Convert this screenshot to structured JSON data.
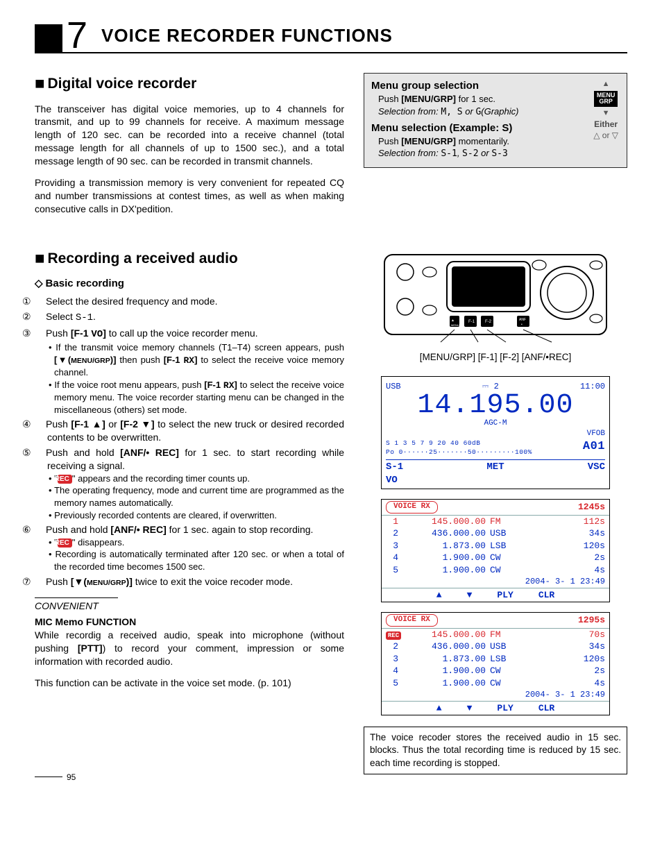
{
  "chapter": {
    "number": "7",
    "title": "VOICE RECORDER FUNCTIONS"
  },
  "section1": {
    "title": "Digital voice recorder",
    "p1": "The transceiver has digital voice memories, up to 4 channels for transmit, and up to 99 channels for receive. A maximum message length of 120 sec. can be recorded into a receive channel (total message length for all channels of up to 1500 sec.), and a total message length of 90 sec. can be recorded in transmit channels.",
    "p2": "Providing a transmission memory is very convenient for repeated CQ and number transmissions at contest times, as well as when making consecutive calls in DX'pedition."
  },
  "menubox": {
    "t1": "Menu group selection",
    "l1a": "Push ",
    "l1key": "[MENU/GRP]",
    "l1b": " for 1 sec.",
    "l2pre": "Selection from: ",
    "l2g": "M, S",
    "l2or": " or ",
    "l2g2": "G",
    "l2post": "(Graphic)",
    "t2": "Menu selection (Example: S)",
    "l3a": "Push ",
    "l3key": "[MENU/GRP]",
    "l3b": " momentarily.",
    "l4pre": "Selection from: ",
    "l4a": "S-1",
    "l4b": "S-2",
    "l4c": "S-3",
    "icon_label": "MENU\nGRP",
    "either": "Either",
    "triangles": "△ or ▽"
  },
  "section2": {
    "title": "Recording a received audio",
    "sub": "Basic recording",
    "steps": [
      {
        "n": "①",
        "t": "Select the desired frequency and mode."
      },
      {
        "n": "②",
        "t": "Select <span class='glyph-mono'>S-1</span>."
      },
      {
        "n": "③",
        "t": "Push <b>[F-1 <span class='glyph-mono'>VO</span>]</b> to call up the voice recorder menu.",
        "subs": [
          "If the transmit voice memory channels (T1–T4) screen appears, push <b>[▼(<span class='menugrp'>MENU/GRP</span>)]</b> then push <b>[F-1 <span class='glyph-mono'>RX</span>]</b> to select the receive voice memory channel.",
          "If the voice root menu appears, push <b>[F-1 <span class='glyph-mono'>RX</span>]</b> to select the receive voice memory menu. The voice recorder starting menu can be changed in the miscellaneous (others) set mode."
        ]
      },
      {
        "n": "④",
        "t": "Push <b>[F-1 ▲]</b> or <b>[F-2 ▼]</b> to select the new truck or desired recorded contents to be overwritten."
      },
      {
        "n": "⑤",
        "t": "Push and hold <b>[ANF/• REC]</b> for 1 sec. to start recording while receiving a signal.",
        "subs": [
          "\"<span class='rec-badge'>REC</span>\" appears and the recording timer counts up.",
          "The operating frequency, mode and current time are programmed as the memory names automatically.",
          "Previously recorded contents are cleared, if overwritten."
        ]
      },
      {
        "n": "⑥",
        "t": "Push and hold <b>[ANF/• REC]</b> for 1 sec. again to stop recording.",
        "subs": [
          "\"<span class='rec-badge'>REC</span>\" disappears.",
          "Recording is automatically terminated after 120 sec. or when a total of the recorded time becomes 1500 sec."
        ]
      },
      {
        "n": "⑦",
        "t": "Push <b>[▼(<span class='menugrp'>MENU/GRP</span>)]</b> twice to exit the voice recoder mode."
      }
    ]
  },
  "convenient": {
    "label": "CONVENIENT",
    "title": "MIC Memo FUNCTION",
    "p1": "While recordig a received audio, speak into microphone (without pushing <b>[PTT]</b>) to record your comment, impression or some information with recorded audio.",
    "p2": "This function can be activate in the voice set mode. (p. 101)"
  },
  "radio_labels": "[MENU/GRP]  [F-1]  [F-2]  [ANF/•REC]",
  "lcd": {
    "usb": "USB",
    "ant": "⎓ 2",
    "time": "11:00",
    "freq": "14.195.00",
    "agc": "AGC-M",
    "vfob": "VFOB",
    "srow": "S 1  3  5  7  9  20  40 60dB",
    "prow": "Po 0······25·······50·········100%",
    "big": "A01",
    "s1": "S-1",
    "vo": "VO",
    "met": "MET",
    "vsc": "VSC"
  },
  "tables": [
    {
      "total": "1245s",
      "rec": false,
      "rows": [
        {
          "n": "1",
          "f": "145.000.00",
          "m": "FM",
          "s": "112s",
          "hl": true
        },
        {
          "n": "2",
          "f": "436.000.00",
          "m": "USB",
          "s": "34s"
        },
        {
          "n": "3",
          "f": "1.873.00",
          "m": "LSB",
          "s": "120s"
        },
        {
          "n": "4",
          "f": "1.900.00",
          "m": "CW",
          "s": "2s"
        },
        {
          "n": "5",
          "f": "1.900.00",
          "m": "CW",
          "s": "4s"
        }
      ],
      "ts": "2004- 3- 1 23:49",
      "foot": [
        "▲",
        "▼",
        "PLY",
        "CLR"
      ]
    },
    {
      "total": "1295s",
      "rec": true,
      "rows": [
        {
          "n": "",
          "f": "145.000.00",
          "m": "FM",
          "s": "70s",
          "hl": true,
          "rec": true
        },
        {
          "n": "2",
          "f": "436.000.00",
          "m": "USB",
          "s": "34s"
        },
        {
          "n": "3",
          "f": "1.873.00",
          "m": "LSB",
          "s": "120s"
        },
        {
          "n": "4",
          "f": "1.900.00",
          "m": "CW",
          "s": "2s"
        },
        {
          "n": "5",
          "f": "1.900.00",
          "m": "CW",
          "s": "4s"
        }
      ],
      "ts": "2004- 3- 1 23:49",
      "foot": [
        "▲",
        "▼",
        "PLY",
        "CLR"
      ]
    }
  ],
  "note": "The voice recoder stores the received audio in 15 sec. blocks. Thus the total recording time is reduced by 15 sec. each time recording is stopped.",
  "page": "95",
  "colors": {
    "blue": "#0029c0",
    "red": "#d8262c"
  }
}
